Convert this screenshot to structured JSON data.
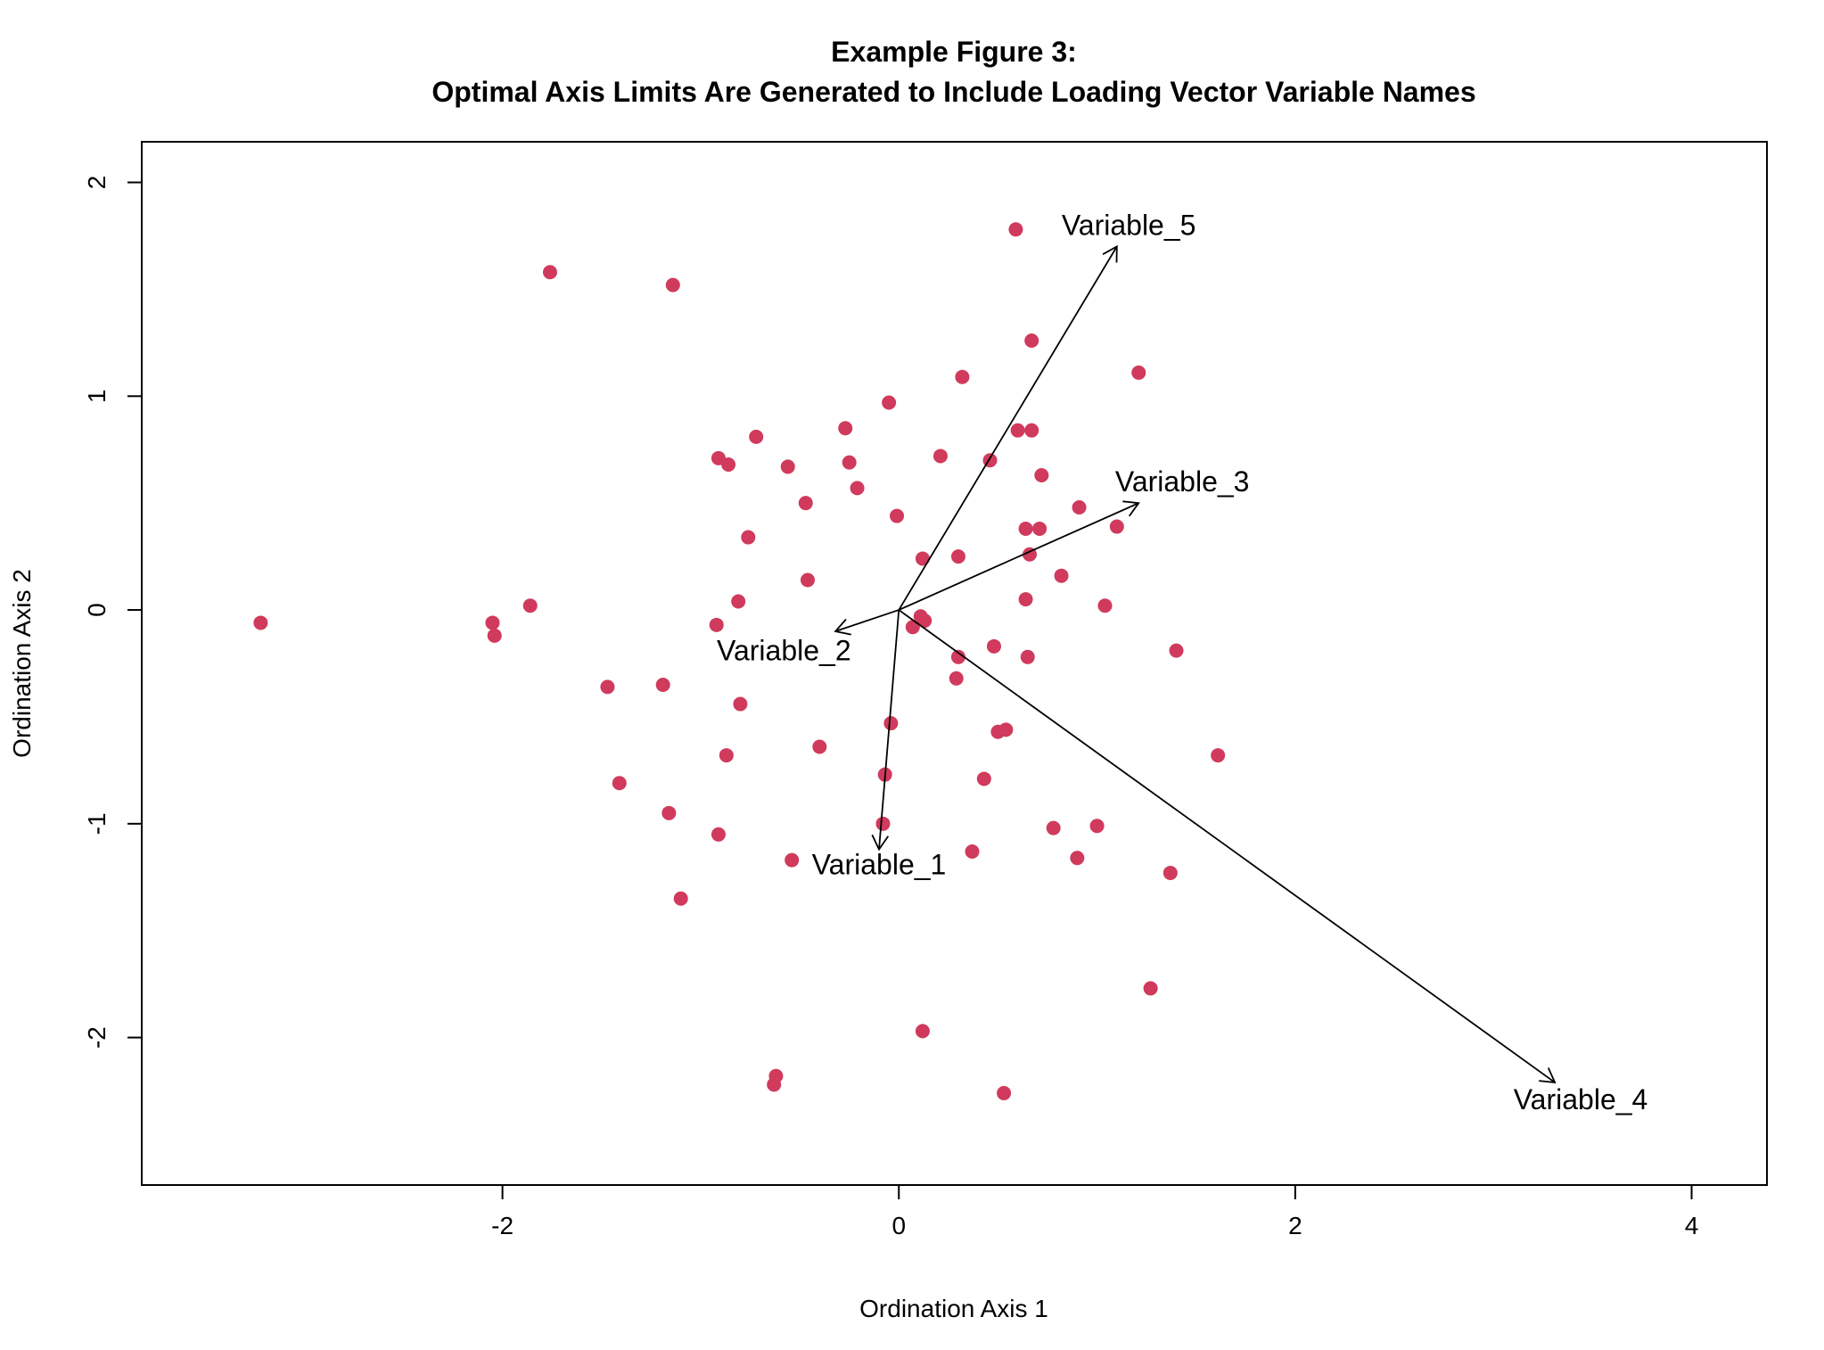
{
  "chart_data": {
    "type": "scatter",
    "title": "Example Figure 3:",
    "subtitle": "Optimal Axis Limits Are Generated to Include Loading Vector Variable Names",
    "xlabel": "Ordination Axis 1",
    "ylabel": "Ordination Axis 2",
    "xlim": [
      -3.82,
      4.38
    ],
    "ylim": [
      -2.69,
      2.19
    ],
    "xticks": [
      -2,
      0,
      2,
      4
    ],
    "yticks": [
      -2,
      -1,
      0,
      1,
      2
    ],
    "grid": false,
    "point_color": "#D03A5C",
    "points": [
      {
        "x": -3.22,
        "y": -0.06
      },
      {
        "x": -2.05,
        "y": -0.06
      },
      {
        "x": -2.04,
        "y": -0.12
      },
      {
        "x": -1.86,
        "y": 0.02
      },
      {
        "x": -1.76,
        "y": 1.58
      },
      {
        "x": -1.47,
        "y": -0.36
      },
      {
        "x": -1.41,
        "y": -0.81
      },
      {
        "x": -1.19,
        "y": -0.35
      },
      {
        "x": -1.16,
        "y": -0.95
      },
      {
        "x": -1.14,
        "y": 1.52
      },
      {
        "x": -1.1,
        "y": -1.35
      },
      {
        "x": -0.92,
        "y": -0.07
      },
      {
        "x": -0.91,
        "y": 0.71
      },
      {
        "x": -0.91,
        "y": -1.05
      },
      {
        "x": -0.86,
        "y": 0.68
      },
      {
        "x": -0.87,
        "y": -0.68
      },
      {
        "x": -0.81,
        "y": 0.04
      },
      {
        "x": -0.8,
        "y": -0.44
      },
      {
        "x": -0.76,
        "y": 0.34
      },
      {
        "x": -0.72,
        "y": 0.81
      },
      {
        "x": -0.62,
        "y": -2.18
      },
      {
        "x": -0.63,
        "y": -2.22
      },
      {
        "x": -0.56,
        "y": 0.67
      },
      {
        "x": -0.54,
        "y": -1.17
      },
      {
        "x": -0.47,
        "y": 0.5
      },
      {
        "x": -0.46,
        "y": 0.14
      },
      {
        "x": -0.4,
        "y": -0.64
      },
      {
        "x": -0.27,
        "y": 0.85
      },
      {
        "x": -0.25,
        "y": 0.69
      },
      {
        "x": -0.21,
        "y": 0.57
      },
      {
        "x": -0.08,
        "y": -1.0
      },
      {
        "x": -0.07,
        "y": -0.77
      },
      {
        "x": -0.05,
        "y": 0.97
      },
      {
        "x": -0.04,
        "y": -0.53
      },
      {
        "x": -0.01,
        "y": 0.44
      },
      {
        "x": 0.07,
        "y": -0.08
      },
      {
        "x": 0.11,
        "y": -0.03
      },
      {
        "x": 0.12,
        "y": 0.24
      },
      {
        "x": 0.12,
        "y": -1.97
      },
      {
        "x": 0.13,
        "y": -0.05
      },
      {
        "x": 0.21,
        "y": 0.72
      },
      {
        "x": 0.3,
        "y": 0.25
      },
      {
        "x": 0.3,
        "y": -0.22
      },
      {
        "x": 0.29,
        "y": -0.32
      },
      {
        "x": 0.32,
        "y": 1.09
      },
      {
        "x": 0.37,
        "y": -1.13
      },
      {
        "x": 0.43,
        "y": -0.79
      },
      {
        "x": 0.46,
        "y": 0.7
      },
      {
        "x": 0.48,
        "y": -0.17
      },
      {
        "x": 0.5,
        "y": -0.57
      },
      {
        "x": 0.53,
        "y": -2.26
      },
      {
        "x": 0.54,
        "y": -0.56
      },
      {
        "x": 0.59,
        "y": 1.78
      },
      {
        "x": 0.6,
        "y": 0.84
      },
      {
        "x": 0.64,
        "y": 0.05
      },
      {
        "x": 0.64,
        "y": 0.38
      },
      {
        "x": 0.65,
        "y": -0.22
      },
      {
        "x": 0.66,
        "y": 0.26
      },
      {
        "x": 0.67,
        "y": 0.84
      },
      {
        "x": 0.67,
        "y": 1.26
      },
      {
        "x": 0.71,
        "y": 0.38
      },
      {
        "x": 0.72,
        "y": 0.63
      },
      {
        "x": 0.78,
        "y": -1.02
      },
      {
        "x": 0.82,
        "y": 0.16
      },
      {
        "x": 0.9,
        "y": -1.16
      },
      {
        "x": 0.91,
        "y": 0.48
      },
      {
        "x": 1.0,
        "y": -1.01
      },
      {
        "x": 1.04,
        "y": 0.02
      },
      {
        "x": 1.1,
        "y": 0.39
      },
      {
        "x": 1.21,
        "y": 1.11
      },
      {
        "x": 1.27,
        "y": -1.77
      },
      {
        "x": 1.37,
        "y": -1.23
      },
      {
        "x": 1.4,
        "y": -0.19
      },
      {
        "x": 1.61,
        "y": -0.68
      }
    ],
    "vectors": [
      {
        "name": "Variable_1",
        "x": -0.1,
        "y": -1.12,
        "label_x": -0.1,
        "label_y": -1.19
      },
      {
        "name": "Variable_2",
        "x": -0.32,
        "y": -0.1,
        "label_x": -0.58,
        "label_y": -0.19
      },
      {
        "name": "Variable_3",
        "x": 1.21,
        "y": 0.5,
        "label_x": 1.43,
        "label_y": 0.6
      },
      {
        "name": "Variable_4",
        "x": 3.31,
        "y": -2.21,
        "label_x": 3.44,
        "label_y": -2.29
      },
      {
        "name": "Variable_5",
        "x": 1.1,
        "y": 1.7,
        "label_x": 1.16,
        "label_y": 1.8
      }
    ]
  }
}
